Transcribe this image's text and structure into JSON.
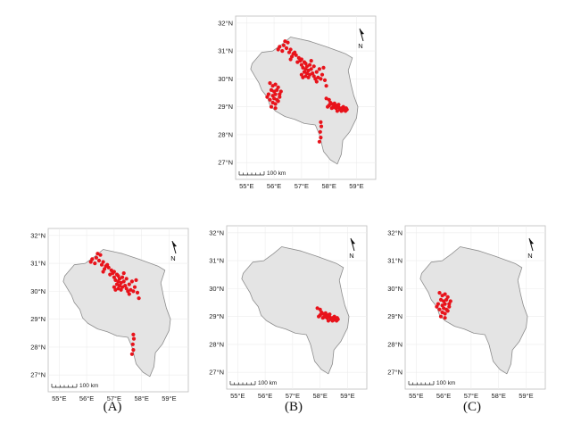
{
  "labels": {
    "north": "N",
    "scale": "100 km"
  },
  "axis": {
    "lat_ticks": [
      "27°N",
      "28°N",
      "29°N",
      "30°N",
      "31°N",
      "32°N"
    ],
    "lon_ticks": [
      "55°E",
      "56°E",
      "57°E",
      "58°E",
      "59°E"
    ]
  },
  "captions": {
    "a": "(A)",
    "b": "(B)",
    "c": "(C)"
  },
  "colors": {
    "points": "#e8131b",
    "land": "#e4e4e4",
    "outline": "#8c8c8c",
    "grid": "#ececec"
  },
  "province_outline": [
    [
      55.2,
      30.55
    ],
    [
      55.55,
      30.95
    ],
    [
      55.95,
      31.0
    ],
    [
      56.3,
      31.25
    ],
    [
      56.6,
      31.5
    ],
    [
      57.3,
      31.35
    ],
    [
      57.9,
      31.15
    ],
    [
      58.6,
      30.9
    ],
    [
      58.85,
      30.75
    ],
    [
      58.7,
      30.3
    ],
    [
      58.8,
      29.8
    ],
    [
      58.9,
      29.4
    ],
    [
      59.05,
      29.0
    ],
    [
      59.0,
      28.6
    ],
    [
      58.75,
      28.1
    ],
    [
      58.5,
      27.8
    ],
    [
      58.45,
      27.3
    ],
    [
      58.3,
      26.95
    ],
    [
      58.05,
      27.1
    ],
    [
      57.8,
      27.4
    ],
    [
      57.65,
      28.0
    ],
    [
      57.5,
      28.35
    ],
    [
      57.1,
      28.4
    ],
    [
      56.75,
      28.55
    ],
    [
      56.4,
      28.65
    ],
    [
      56.05,
      28.85
    ],
    [
      55.85,
      29.05
    ],
    [
      55.75,
      29.35
    ],
    [
      55.55,
      29.6
    ],
    [
      55.45,
      29.85
    ],
    [
      55.3,
      30.1
    ],
    [
      55.15,
      30.35
    ]
  ],
  "points_b": [
    [
      57.9,
      29.3
    ],
    [
      58.0,
      29.25
    ],
    [
      58.05,
      29.15
    ],
    [
      58.0,
      29.05
    ],
    [
      58.1,
      29.1
    ],
    [
      58.2,
      29.05
    ],
    [
      58.15,
      28.98
    ],
    [
      58.25,
      28.95
    ],
    [
      58.3,
      29.05
    ],
    [
      58.35,
      28.98
    ],
    [
      58.4,
      28.9
    ],
    [
      58.45,
      28.95
    ],
    [
      58.5,
      28.88
    ],
    [
      58.55,
      28.92
    ],
    [
      58.6,
      28.85
    ],
    [
      58.65,
      28.9
    ],
    [
      57.95,
      29.0
    ],
    [
      58.1,
      28.95
    ],
    [
      58.2,
      29.12
    ],
    [
      58.35,
      29.08
    ],
    [
      58.45,
      28.85
    ],
    [
      58.52,
      29.0
    ],
    [
      58.62,
      28.95
    ],
    [
      58.3,
      28.85
    ]
  ],
  "points_c": [
    [
      55.85,
      29.85
    ],
    [
      55.95,
      29.75
    ],
    [
      56.05,
      29.8
    ],
    [
      56.15,
      29.7
    ],
    [
      55.9,
      29.6
    ],
    [
      56.0,
      29.55
    ],
    [
      56.1,
      29.6
    ],
    [
      56.25,
      29.55
    ],
    [
      55.8,
      29.45
    ],
    [
      55.95,
      29.4
    ],
    [
      56.05,
      29.45
    ],
    [
      56.2,
      29.35
    ],
    [
      56.0,
      29.3
    ],
    [
      56.1,
      29.25
    ],
    [
      55.85,
      29.25
    ],
    [
      55.95,
      29.15
    ],
    [
      56.05,
      29.1
    ],
    [
      56.15,
      29.2
    ],
    [
      55.9,
      29.0
    ],
    [
      56.05,
      28.95
    ],
    [
      56.2,
      29.45
    ],
    [
      55.75,
      29.35
    ]
  ],
  "points_a": [
    [
      56.4,
      31.35
    ],
    [
      56.5,
      31.3
    ],
    [
      56.35,
      31.2
    ],
    [
      56.2,
      31.15
    ],
    [
      56.45,
      31.1
    ],
    [
      56.6,
      31.05
    ],
    [
      56.3,
      31.0
    ],
    [
      56.55,
      30.95
    ],
    [
      56.7,
      30.9
    ],
    [
      56.8,
      30.85
    ],
    [
      56.65,
      30.8
    ],
    [
      56.9,
      30.75
    ],
    [
      57.0,
      30.7
    ],
    [
      56.95,
      30.65
    ],
    [
      57.1,
      30.6
    ],
    [
      57.15,
      30.55
    ],
    [
      56.85,
      30.6
    ],
    [
      57.0,
      30.5
    ],
    [
      57.2,
      30.45
    ],
    [
      57.3,
      30.5
    ],
    [
      57.05,
      30.4
    ],
    [
      57.15,
      30.35
    ],
    [
      57.25,
      30.3
    ],
    [
      57.35,
      30.35
    ],
    [
      57.1,
      30.25
    ],
    [
      57.2,
      30.2
    ],
    [
      57.3,
      30.15
    ],
    [
      57.4,
      30.2
    ],
    [
      57.0,
      30.15
    ],
    [
      57.15,
      30.1
    ],
    [
      57.25,
      30.05
    ],
    [
      57.05,
      30.05
    ],
    [
      57.45,
      30.1
    ],
    [
      57.5,
      30.0
    ],
    [
      57.6,
      30.05
    ],
    [
      57.7,
      30.0
    ],
    [
      57.55,
      30.25
    ],
    [
      57.65,
      30.35
    ],
    [
      57.8,
      30.4
    ],
    [
      57.75,
      30.15
    ],
    [
      57.85,
      29.95
    ],
    [
      57.9,
      29.75
    ],
    [
      56.75,
      30.95
    ],
    [
      57.35,
      30.65
    ],
    [
      57.45,
      30.45
    ],
    [
      57.7,
      28.45
    ],
    [
      57.72,
      28.3
    ],
    [
      57.68,
      28.1
    ],
    [
      57.7,
      27.9
    ],
    [
      57.65,
      27.75
    ],
    [
      56.15,
      31.05
    ],
    [
      56.6,
      30.7
    ],
    [
      57.55,
      29.9
    ]
  ]
}
